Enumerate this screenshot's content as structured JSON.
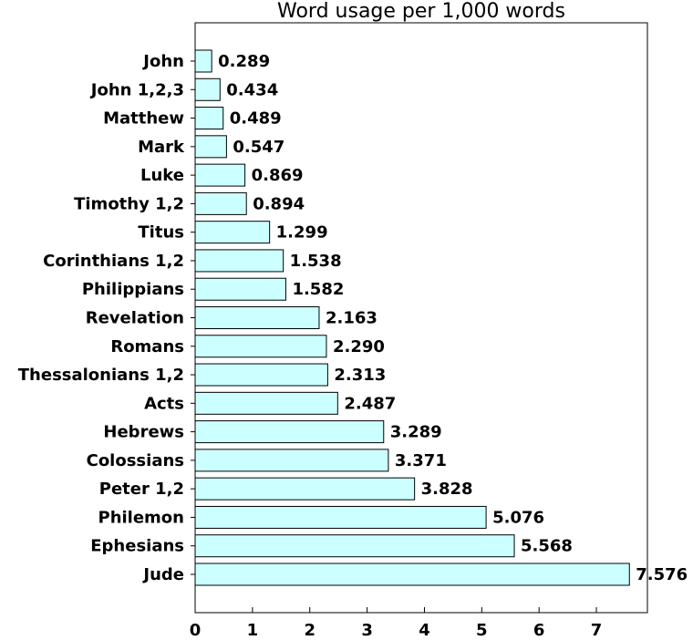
{
  "chart_data": {
    "type": "bar",
    "orientation": "horizontal",
    "title": "Word usage per 1,000 words",
    "xlabel": "",
    "ylabel": "",
    "categories": [
      "John",
      "John 1,2,3",
      "Matthew",
      "Mark",
      "Luke",
      "Timothy 1,2",
      "Titus",
      "Corinthians 1,2",
      "Philippians",
      "Revelation",
      "Romans",
      "Thessalonians 1,2",
      "Acts",
      "Hebrews",
      "Colossians",
      "Peter 1,2",
      "Philemon",
      "Ephesians",
      "Jude"
    ],
    "values": [
      0.289,
      0.434,
      0.489,
      0.547,
      0.869,
      0.894,
      1.299,
      1.538,
      1.582,
      2.163,
      2.29,
      2.313,
      2.487,
      3.289,
      3.371,
      3.828,
      5.076,
      5.568,
      7.576
    ],
    "data_labels": [
      "0.289",
      "0.434",
      "0.489",
      "0.547",
      "0.869",
      "0.894",
      "1.299",
      "1.538",
      "1.582",
      "2.163",
      "2.290",
      "2.313",
      "2.487",
      "3.289",
      "3.371",
      "3.828",
      "5.076",
      "5.568",
      "7.576"
    ],
    "xticks": [
      "0",
      "1",
      "2",
      "3",
      "4",
      "5",
      "6",
      "7"
    ],
    "xlim": [
      0,
      7.89
    ],
    "grid": false,
    "bar_color": "#ccffff",
    "edge_color": "#000000"
  }
}
